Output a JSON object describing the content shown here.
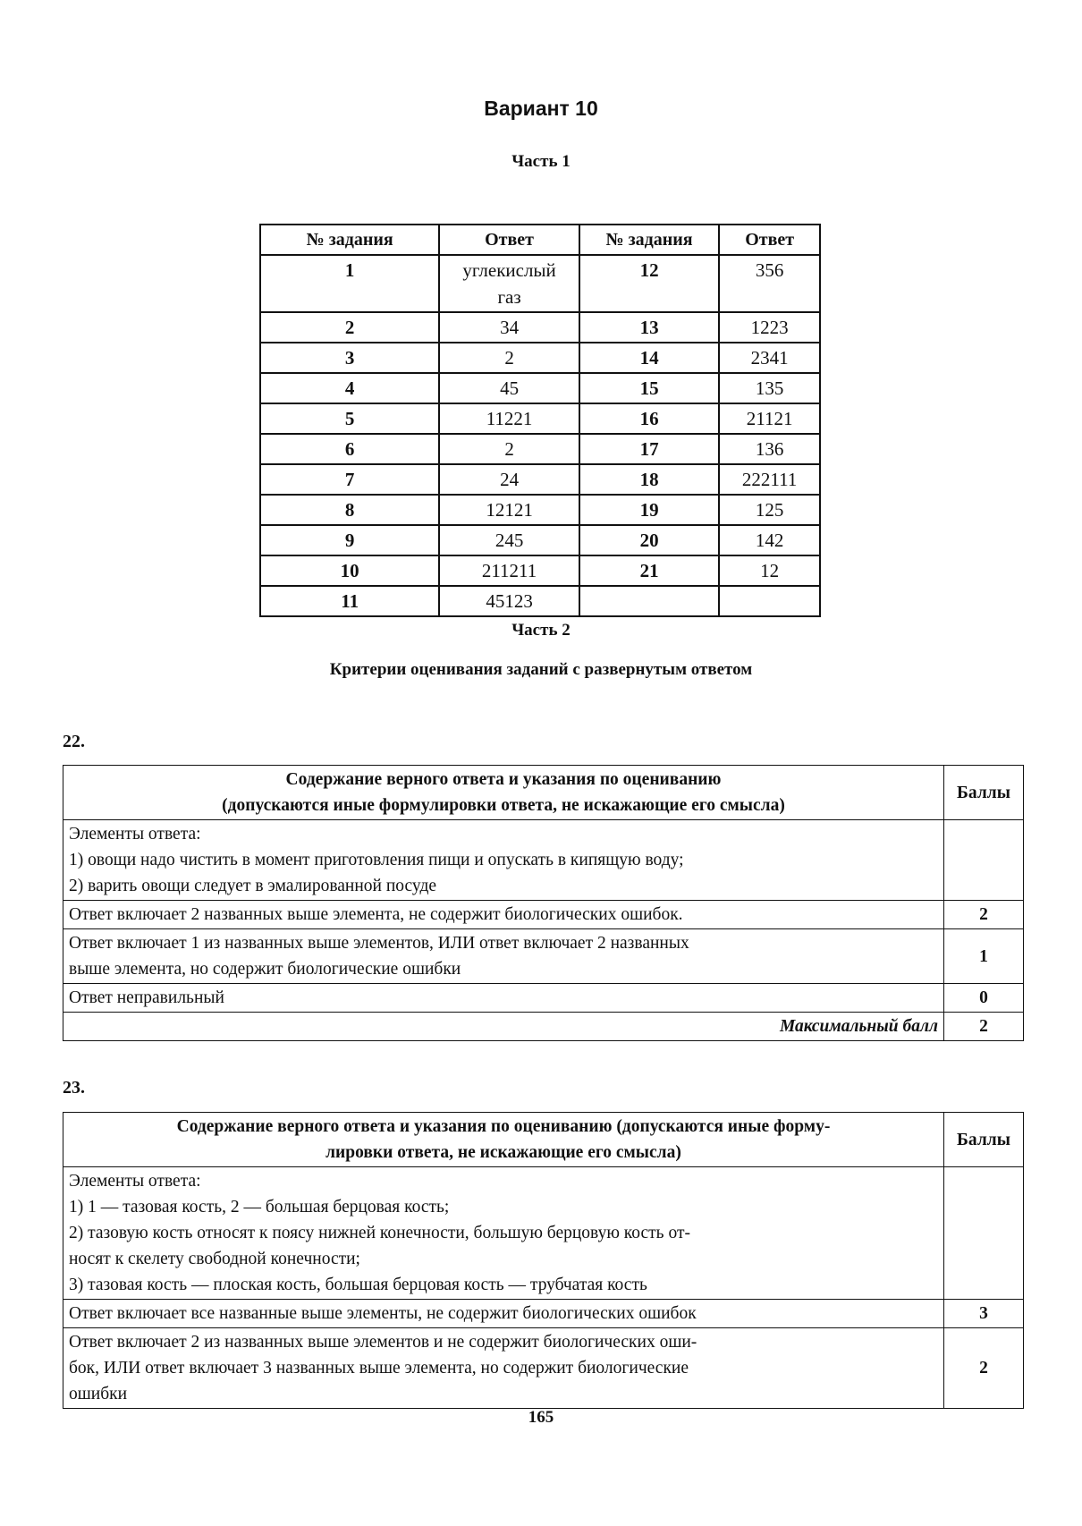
{
  "title": "Вариант 10",
  "part1": {
    "heading": "Часть 1",
    "headers": [
      "№ задания",
      "Ответ",
      "№ задания",
      "Ответ"
    ],
    "rows": [
      {
        "n1": "1",
        "a1": [
          "углекислый",
          "газ"
        ],
        "n2": "12",
        "a2": "356"
      },
      {
        "n1": "2",
        "a1": [
          "34"
        ],
        "n2": "13",
        "a2": "1223"
      },
      {
        "n1": "3",
        "a1": [
          "2"
        ],
        "n2": "14",
        "a2": "2341"
      },
      {
        "n1": "4",
        "a1": [
          "45"
        ],
        "n2": "15",
        "a2": "135"
      },
      {
        "n1": "5",
        "a1": [
          "11221"
        ],
        "n2": "16",
        "a2": "21121"
      },
      {
        "n1": "6",
        "a1": [
          "2"
        ],
        "n2": "17",
        "a2": "136"
      },
      {
        "n1": "7",
        "a1": [
          "24"
        ],
        "n2": "18",
        "a2": "222111"
      },
      {
        "n1": "8",
        "a1": [
          "12121"
        ],
        "n2": "19",
        "a2": "125"
      },
      {
        "n1": "9",
        "a1": [
          "245"
        ],
        "n2": "20",
        "a2": "142"
      },
      {
        "n1": "10",
        "a1": [
          "211211"
        ],
        "n2": "21",
        "a2": "12"
      },
      {
        "n1": "11",
        "a1": [
          "45123"
        ],
        "n2": "",
        "a2": ""
      }
    ]
  },
  "part2": {
    "heading": "Часть 2",
    "subheading": "Критерии оценивания заданий с развернутым ответом"
  },
  "q22": {
    "number": "22.",
    "header": [
      "Содержание верного ответа и указания по оцениванию",
      "(допускаются иные формулировки ответа, не искажающие его смысла)"
    ],
    "score_header": "Баллы",
    "elements": [
      "Элементы ответа:",
      "1) овощи надо чистить в момент приготовления пищи и опускать в кипящую воду;",
      "2) варить овощи следует в эмалированной посуде"
    ],
    "criteria": [
      {
        "text": [
          "Ответ включает 2 названных выше элемента, не содержит биологических ошибок."
        ],
        "score": "2"
      },
      {
        "text": [
          "Ответ включает 1 из названных выше элементов, ИЛИ ответ включает 2 названных",
          "выше элемента, но содержит биологические ошибки"
        ],
        "score": "1"
      },
      {
        "text": [
          "Ответ неправильный"
        ],
        "score": "0"
      }
    ],
    "max_label": "Максимальный балл",
    "max_score": "2"
  },
  "q23": {
    "number": "23.",
    "header": [
      "Содержание верного ответа и указания по оцениванию (допускаются иные форму-",
      "лировки ответа, не искажающие его смысла)"
    ],
    "score_header": "Баллы",
    "elements": [
      "Элементы ответа:",
      "1) 1 — тазовая кость, 2 — большая берцовая кость;",
      "2) тазовую кость относят к поясу нижней конечности, большую берцовую кость от-",
      "носят к скелету свободной конечности;",
      "3) тазовая кость — плоская кость, большая берцовая кость — трубчатая кость"
    ],
    "criteria": [
      {
        "text": [
          "Ответ включает все названные выше элементы, не содержит биологических ошибок"
        ],
        "score": "3"
      },
      {
        "text": [
          "Ответ включает 2 из названных выше элементов и не содержит биологических оши-",
          "бок, ИЛИ ответ включает 3 названных выше элемента, но содержит биологические",
          "ошибки"
        ],
        "score": "2"
      }
    ]
  },
  "page_number": "165"
}
